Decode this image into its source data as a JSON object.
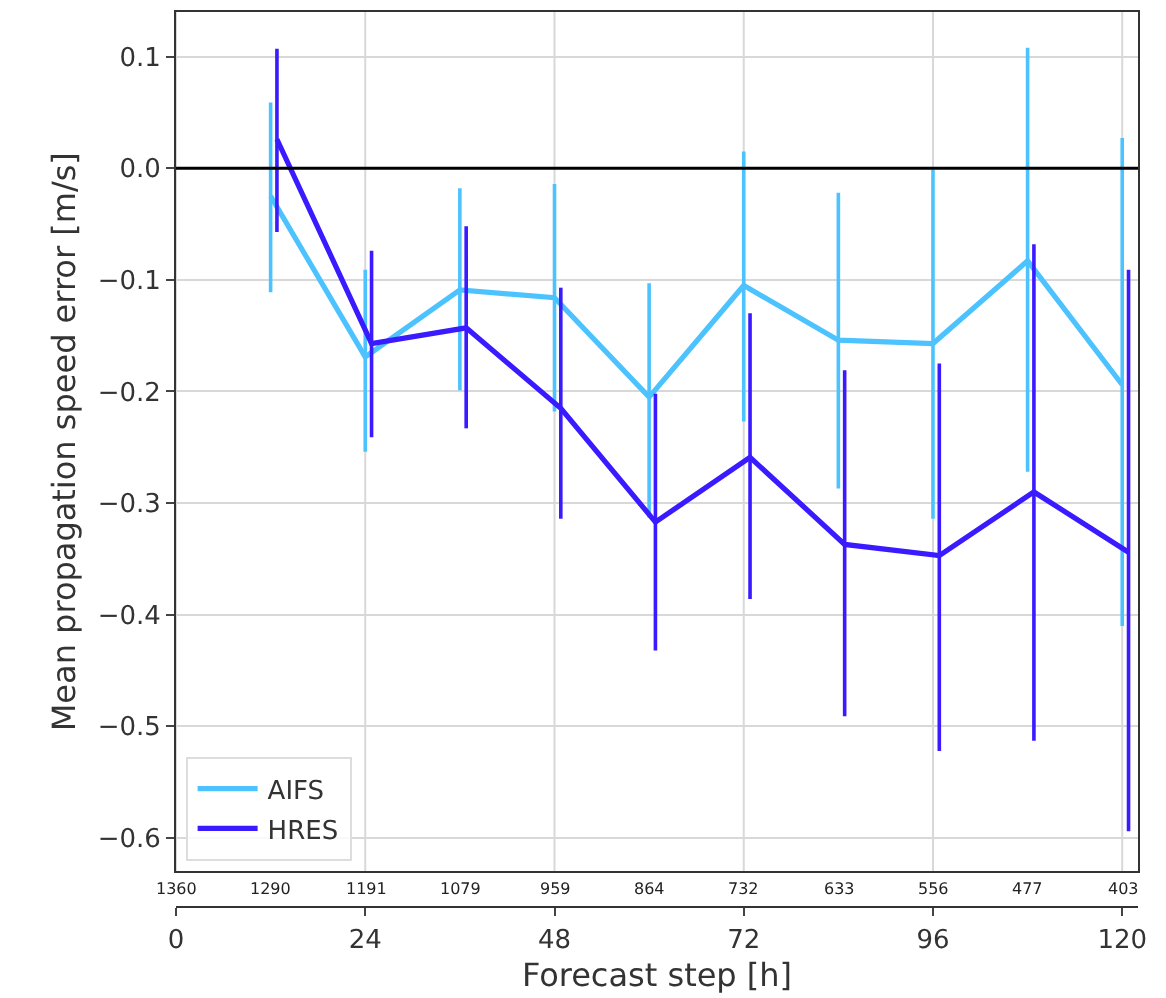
{
  "chart_data": {
    "type": "line",
    "xlabel": "Forecast step [h]",
    "ylabel": "Mean propagation speed error [m/s]",
    "xlim": [
      0,
      122
    ],
    "xticks": [
      0,
      24,
      48,
      72,
      96,
      120
    ],
    "annotations": [
      "1360",
      "1290",
      "1191",
      "1079",
      "959",
      "864",
      "732",
      "633",
      "556",
      "477",
      "403"
    ],
    "ylim": [
      -0.63,
      0.14
    ],
    "yticks": [
      {
        "value": 0.1,
        "label": "0.1"
      },
      {
        "value": 0.0,
        "label": "0.0"
      },
      {
        "value": -0.1,
        "label": "−0.1"
      },
      {
        "value": -0.2,
        "label": "−0.2"
      },
      {
        "value": -0.3,
        "label": "−0.3"
      },
      {
        "value": -0.4,
        "label": "−0.4"
      },
      {
        "value": -0.5,
        "label": "−0.5"
      },
      {
        "value": -0.6,
        "label": "−0.6"
      }
    ],
    "grid": true,
    "legend": "bottom left",
    "marker": "none",
    "line_style": "solid",
    "ref_lines": [
      {
        "axis": "y",
        "value": 0,
        "color": "#000000"
      }
    ],
    "series": [
      {
        "name": "AIFS",
        "color": "#4cc3ff",
        "x": [
          12,
          24,
          36,
          48,
          60,
          72,
          84,
          96,
          108,
          120
        ],
        "values": [
          -0.025,
          -0.169,
          -0.109,
          -0.116,
          -0.205,
          -0.105,
          -0.154,
          -0.157,
          -0.083,
          -0.194
        ],
        "errors": [
          [
            -0.111,
            0.059
          ],
          [
            -0.254,
            -0.091
          ],
          [
            -0.199,
            -0.018
          ],
          [
            -0.218,
            -0.014
          ],
          [
            -0.313,
            -0.103
          ],
          [
            -0.227,
            0.015
          ],
          [
            -0.287,
            -0.022
          ],
          [
            -0.314,
            -0.001
          ],
          [
            -0.272,
            0.108
          ],
          [
            -0.41,
            0.027
          ]
        ]
      },
      {
        "name": "HRES",
        "color": "#3a1aff",
        "x": [
          12.8,
          24.8,
          36.8,
          48.8,
          60.8,
          72.8,
          84.8,
          96.8,
          108.8,
          120.8
        ],
        "values": [
          0.026,
          -0.157,
          -0.143,
          -0.215,
          -0.317,
          -0.259,
          -0.337,
          -0.347,
          -0.29,
          -0.344
        ],
        "errors": [
          [
            -0.057,
            0.107
          ],
          [
            -0.241,
            -0.074
          ],
          [
            -0.233,
            -0.052
          ],
          [
            -0.314,
            -0.107
          ],
          [
            -0.432,
            -0.202
          ],
          [
            -0.386,
            -0.13
          ],
          [
            -0.491,
            -0.181
          ],
          [
            -0.522,
            -0.175
          ],
          [
            -0.513,
            -0.068
          ],
          [
            -0.594,
            -0.091
          ]
        ]
      }
    ]
  }
}
